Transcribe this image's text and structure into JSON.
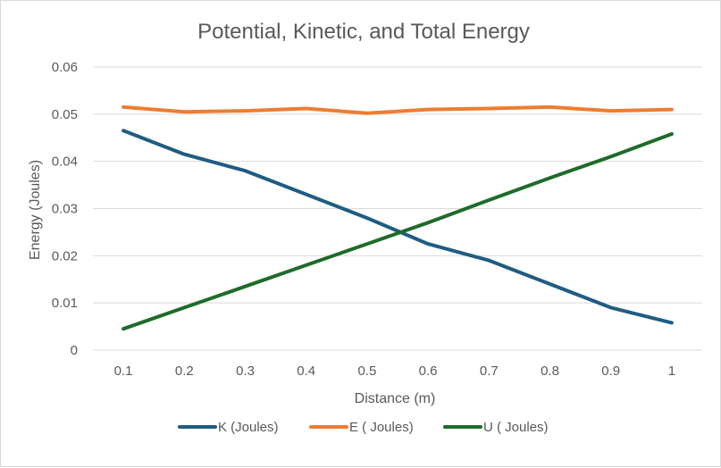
{
  "chart_data": {
    "type": "line",
    "title": "Potential, Kinetic, and Total Energy",
    "xlabel": "Distance (m)",
    "ylabel": "Energy (Joules)",
    "categories": [
      "0.1",
      "0.2",
      "0.3",
      "0.4",
      "0.5",
      "0.6",
      "0.7",
      "0.8",
      "0.9",
      "1"
    ],
    "y_ticks": [
      "0",
      "0.01",
      "0.02",
      "0.03",
      "0.04",
      "0.05",
      "0.06"
    ],
    "ylim": [
      0,
      0.06
    ],
    "grid": true,
    "legend_position": "bottom",
    "series": [
      {
        "name": "K (Joules)",
        "color": "#1f5c82",
        "values": [
          0.0465,
          0.0415,
          0.038,
          0.033,
          0.028,
          0.0225,
          0.019,
          0.014,
          0.009,
          0.0058
        ]
      },
      {
        "name": "E ( Joules)",
        "color": "#ed7d31",
        "values": [
          0.0515,
          0.0505,
          0.0507,
          0.0512,
          0.0502,
          0.051,
          0.0512,
          0.0515,
          0.0507,
          0.051
        ]
      },
      {
        "name": "U ( Joules)",
        "color": "#1e6b2a",
        "values": [
          0.0045,
          0.009,
          0.0135,
          0.018,
          0.0225,
          0.027,
          0.0318,
          0.0365,
          0.041,
          0.0458
        ]
      }
    ]
  }
}
